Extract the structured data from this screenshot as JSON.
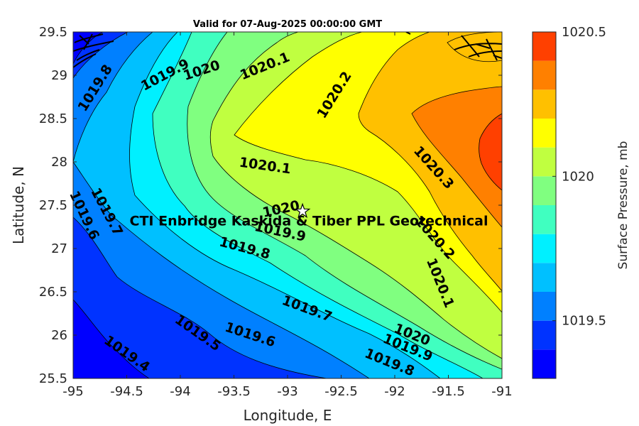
{
  "chart_data": {
    "type": "contour",
    "title": "Valid for 07-Aug-2025 00:00:00 GMT",
    "xlabel": "Longitude, E",
    "ylabel": "Latitude, N",
    "xlim": [
      -95,
      -91
    ],
    "ylim": [
      25.5,
      29.5
    ],
    "xticks": [
      "-95",
      "-94.5",
      "-94",
      "-93.5",
      "-93",
      "-92.5",
      "-92",
      "-91.5",
      "-91"
    ],
    "yticks": [
      "25.5",
      "26",
      "26.5",
      "27",
      "27.5",
      "28",
      "28.5",
      "29",
      "29.5"
    ],
    "colorbar": {
      "label": "Surface Pressure, mb",
      "range": [
        1019.3,
        1020.5
      ],
      "ticks": [
        "1019.5",
        "1020",
        "1020.5"
      ],
      "levels": [
        1019.3,
        1019.4,
        1019.5,
        1019.6,
        1019.7,
        1019.8,
        1019.9,
        1020.0,
        1020.1,
        1020.2,
        1020.3,
        1020.4,
        1020.5
      ],
      "colors": [
        "#0000ff",
        "#0033ff",
        "#0080ff",
        "#00c0ff",
        "#00f0ff",
        "#40ffc0",
        "#80ff80",
        "#c0ff40",
        "#ffff00",
        "#ffc000",
        "#ff8000",
        "#ff4000",
        "#ff0000"
      ]
    },
    "contour_labels": [
      {
        "text": "1019.8",
        "lon": -94.79,
        "lat": 28.85,
        "angle": -58
      },
      {
        "text": "1019.9",
        "lon": -94.14,
        "lat": 29.0,
        "angle": -28
      },
      {
        "text": "1020",
        "lon": -93.8,
        "lat": 29.05,
        "angle": -18
      },
      {
        "text": "1020.1",
        "lon": -93.21,
        "lat": 29.1,
        "angle": -22
      },
      {
        "text": "1020.2",
        "lon": -92.56,
        "lat": 28.77,
        "angle": -58
      },
      {
        "text": "1020.1",
        "lon": -93.21,
        "lat": 27.95,
        "angle": 8
      },
      {
        "text": "1020.3",
        "lon": -91.64,
        "lat": 27.93,
        "angle": 48
      },
      {
        "text": "1019.6",
        "lon": -94.9,
        "lat": 27.38,
        "angle": 65
      },
      {
        "text": "1019.7",
        "lon": -94.69,
        "lat": 27.42,
        "angle": 62
      },
      {
        "text": "1020",
        "lon": -93.06,
        "lat": 27.45,
        "angle": -12
      },
      {
        "text": "1019.9",
        "lon": -93.07,
        "lat": 27.19,
        "angle": 12
      },
      {
        "text": "1019.8",
        "lon": -93.4,
        "lat": 27.0,
        "angle": 15
      },
      {
        "text": "1020.2",
        "lon": -91.63,
        "lat": 27.12,
        "angle": 48
      },
      {
        "text": "1020.1",
        "lon": -91.58,
        "lat": 26.6,
        "angle": 68
      },
      {
        "text": "1019.7",
        "lon": -92.82,
        "lat": 26.3,
        "angle": 20
      },
      {
        "text": "1019.6",
        "lon": -93.35,
        "lat": 26.0,
        "angle": 18
      },
      {
        "text": "1019.5",
        "lon": -93.84,
        "lat": 26.02,
        "angle": 35
      },
      {
        "text": "1020",
        "lon": -91.84,
        "lat": 26.0,
        "angle": 22
      },
      {
        "text": "1019.9",
        "lon": -91.88,
        "lat": 25.85,
        "angle": 22
      },
      {
        "text": "1019.8",
        "lon": -92.05,
        "lat": 25.68,
        "angle": 22
      },
      {
        "text": "1019.4",
        "lon": -94.5,
        "lat": 25.78,
        "angle": 35
      }
    ],
    "annotation": {
      "text": "CTI Enbridge  Kaskida & Tiber PPL Geotechnical",
      "marker": "star",
      "lon": -92.86,
      "lat": 27.43
    }
  }
}
